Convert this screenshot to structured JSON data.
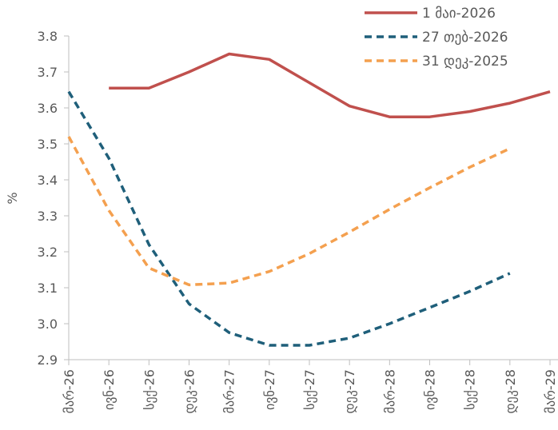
{
  "chart_data": {
    "type": "line",
    "ylabel": "%",
    "ylim": [
      2.9,
      3.8
    ],
    "y_ticks": [
      "2.9",
      "3.0",
      "3.1",
      "3.2",
      "3.3",
      "3.4",
      "3.5",
      "3.6",
      "3.7",
      "3.8"
    ],
    "categories": [
      "მარ-26",
      "ივნ-26",
      "სექ-26",
      "დეკ-26",
      "მარ-27",
      "ივნ-27",
      "სექ-27",
      "დეკ-27",
      "მარ-28",
      "ივნ-28",
      "სექ-28",
      "დეკ-28",
      "მარ-29"
    ],
    "grid": false,
    "legend_position": "top-right",
    "series": [
      {
        "name": "1 მაი-2026",
        "color": "#c0504d",
        "style": "solid",
        "values": [
          null,
          3.655,
          3.655,
          3.7,
          3.75,
          3.735,
          3.67,
          3.605,
          3.575,
          3.575,
          3.59,
          3.613,
          3.645
        ]
      },
      {
        "name": "27 თებ-2026",
        "color": "#1f5f7a",
        "style": "dashed",
        "values": [
          3.645,
          3.46,
          3.22,
          3.055,
          2.975,
          2.94,
          2.94,
          2.96,
          3.0,
          3.045,
          3.09,
          3.14,
          null
        ]
      },
      {
        "name": "31 დეკ-2025",
        "color": "#f4a04f",
        "style": "dashed",
        "values": [
          3.52,
          3.315,
          3.155,
          3.108,
          3.113,
          3.145,
          3.195,
          3.255,
          3.318,
          3.378,
          3.435,
          3.487,
          null
        ]
      }
    ]
  }
}
